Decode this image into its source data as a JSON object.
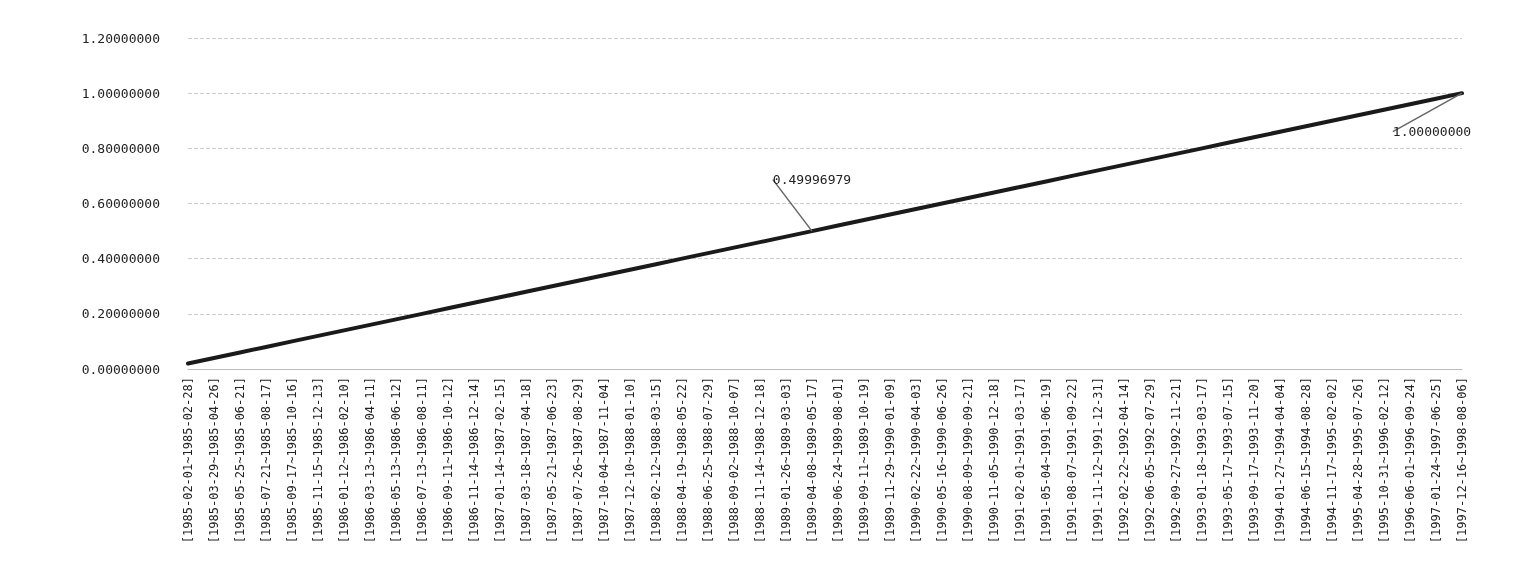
{
  "chart_data": {
    "type": "line",
    "categories": [
      "[1985-02-01~1985-02-28]",
      "[1985-03-29~1985-04-26]",
      "[1985-05-25~1985-06-21]",
      "[1985-07-21~1985-08-17]",
      "[1985-09-17~1985-10-16]",
      "[1985-11-15~1985-12-13]",
      "[1986-01-12~1986-02-10]",
      "[1986-03-13~1986-04-11]",
      "[1986-05-13~1986-06-12]",
      "[1986-07-13~1986-08-11]",
      "[1986-09-11~1986-10-12]",
      "[1986-11-14~1986-12-14]",
      "[1987-01-14~1987-02-15]",
      "[1987-03-18~1987-04-18]",
      "[1987-05-21~1987-06-23]",
      "[1987-07-26~1987-08-29]",
      "[1987-10-04~1987-11-04]",
      "[1987-12-10~1988-01-10]",
      "[1988-02-12~1988-03-15]",
      "[1988-04-19~1988-05-22]",
      "[1988-06-25~1988-07-29]",
      "[1988-09-02~1988-10-07]",
      "[1988-11-14~1988-12-18]",
      "[1989-01-26~1989-03-03]",
      "[1989-04-08~1989-05-17]",
      "[1989-06-24~1989-08-01]",
      "[1989-09-11~1989-10-19]",
      "[1989-11-29~1990-01-09]",
      "[1990-02-22~1990-04-03]",
      "[1990-05-16~1990-06-26]",
      "[1990-08-09~1990-09-21]",
      "[1990-11-05~1990-12-18]",
      "[1991-02-01~1991-03-17]",
      "[1991-05-04~1991-06-19]",
      "[1991-08-07~1991-09-22]",
      "[1991-11-12~1991-12-31]",
      "[1992-02-22~1992-04-14]",
      "[1992-06-05~1992-07-29]",
      "[1992-09-27~1992-11-21]",
      "[1993-01-18~1993-03-17]",
      "[1993-05-17~1993-07-15]",
      "[1993-09-17~1993-11-20]",
      "[1994-01-27~1994-04-04]",
      "[1994-06-15~1994-08-28]",
      "[1994-11-17~1995-02-02]",
      "[1995-04-28~1995-07-26]",
      "[1995-10-31~1996-02-12]",
      "[1996-06-01~1996-09-24]",
      "[1997-01-24~1997-06-25]",
      "[1997-12-16~1998-08-06]"
    ],
    "series": [
      {
        "color": "#1a1a1a",
        "values": [
          0.02,
          0.04,
          0.06,
          0.08,
          0.1,
          0.12,
          0.14,
          0.16,
          0.18,
          0.2,
          0.22,
          0.24,
          0.26,
          0.28,
          0.3,
          0.32,
          0.34,
          0.36,
          0.38,
          0.4,
          0.42,
          0.44,
          0.46,
          0.48,
          0.49996979,
          0.52,
          0.54,
          0.56,
          0.58,
          0.6,
          0.62,
          0.64,
          0.66,
          0.68,
          0.7,
          0.72,
          0.74,
          0.76,
          0.78,
          0.8,
          0.82,
          0.84,
          0.86,
          0.88,
          0.9,
          0.92,
          0.94,
          0.96,
          0.98,
          1.0
        ],
        "value_labels": [
          null,
          null,
          null,
          null,
          null,
          null,
          null,
          null,
          null,
          null,
          null,
          null,
          null,
          null,
          null,
          null,
          null,
          null,
          null,
          null,
          null,
          null,
          null,
          null,
          "0.49996979",
          null,
          null,
          null,
          null,
          null,
          null,
          null,
          null,
          null,
          null,
          null,
          null,
          null,
          null,
          null,
          null,
          null,
          null,
          null,
          null,
          null,
          null,
          null,
          null,
          "1.00000000"
        ]
      }
    ],
    "ylim": [
      0,
      1.2
    ],
    "yticks": [
      {
        "value": 0,
        "label": "0.00000000"
      },
      {
        "value": 0.2,
        "label": "0.20000000"
      },
      {
        "value": 0.4,
        "label": "0.40000000"
      },
      {
        "value": 0.6,
        "label": "0.60000000"
      },
      {
        "value": 0.8,
        "label": "0.80000000"
      },
      {
        "value": 1,
        "label": "1.00000000"
      },
      {
        "value": 1.2,
        "label": "1.20000000"
      }
    ],
    "grid": "y",
    "marker": "none",
    "line_style": "solid"
  }
}
